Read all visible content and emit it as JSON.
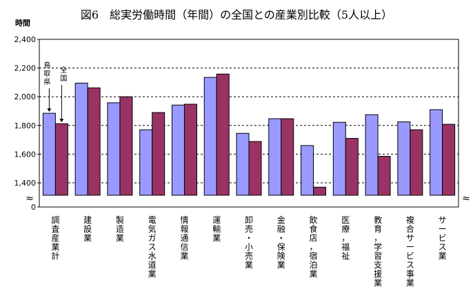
{
  "chart_data": {
    "type": "bar",
    "title": "図6　総実労働時間（年間）の全国との産業別比較（5人以上）",
    "ylabel": "時間",
    "ylim": [
      1200,
      2400
    ],
    "yticks": [
      "0",
      "1,400",
      "1,600",
      "1,800",
      "2,000",
      "2,200",
      "2,400"
    ],
    "axis_break": "≈",
    "grid": "dashed horizontal",
    "categories": [
      "調査産業計",
      "建設業",
      "製造業",
      "電気ガス水道業",
      "情報通信業",
      "運輸業",
      "卸売・小売業",
      "金融・保険業",
      "飲食店，宿泊業",
      "医療，福祉",
      "教育，学習支援業",
      "複合サービス事業",
      "サービス業"
    ],
    "series": [
      {
        "name": "鳥取県",
        "color": "#9999ff",
        "values": [
          1885,
          2095,
          1958,
          1770,
          1942,
          2135,
          1745,
          1847,
          1660,
          1822,
          1875,
          1825,
          1910
        ]
      },
      {
        "name": "全国",
        "color": "#993366",
        "values": [
          1812,
          2062,
          2000,
          1890,
          1948,
          2158,
          1688,
          1847,
          1370,
          1710,
          1585,
          1770,
          1808
        ]
      }
    ],
    "annotations": [
      {
        "text": "鳥取県",
        "series": "鳥取県"
      },
      {
        "text": "全国",
        "series": "全国"
      }
    ]
  }
}
